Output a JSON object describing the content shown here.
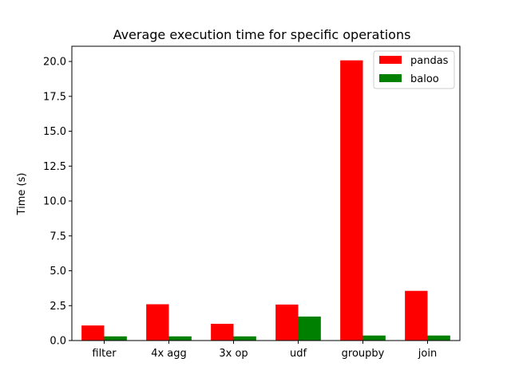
{
  "chart_data": {
    "type": "bar",
    "title": "Average execution time for specific operations",
    "xlabel": "",
    "ylabel": "Time (s)",
    "categories": [
      "filter",
      "4x agg",
      "3x op",
      "udf",
      "groupby",
      "join"
    ],
    "series": [
      {
        "name": "pandas",
        "color": "#ff0000",
        "values": [
          1.08,
          2.6,
          1.2,
          2.58,
          20.08,
          3.56
        ]
      },
      {
        "name": "baloo",
        "color": "#008000",
        "values": [
          0.3,
          0.3,
          0.3,
          1.72,
          0.36,
          0.36
        ]
      }
    ],
    "ylim": [
      0,
      21.09
    ],
    "yticks": [
      "0.0",
      "2.5",
      "5.0",
      "7.5",
      "10.0",
      "12.5",
      "15.0",
      "17.5",
      "20.0"
    ],
    "grid": false,
    "legend_position": "top-right"
  }
}
